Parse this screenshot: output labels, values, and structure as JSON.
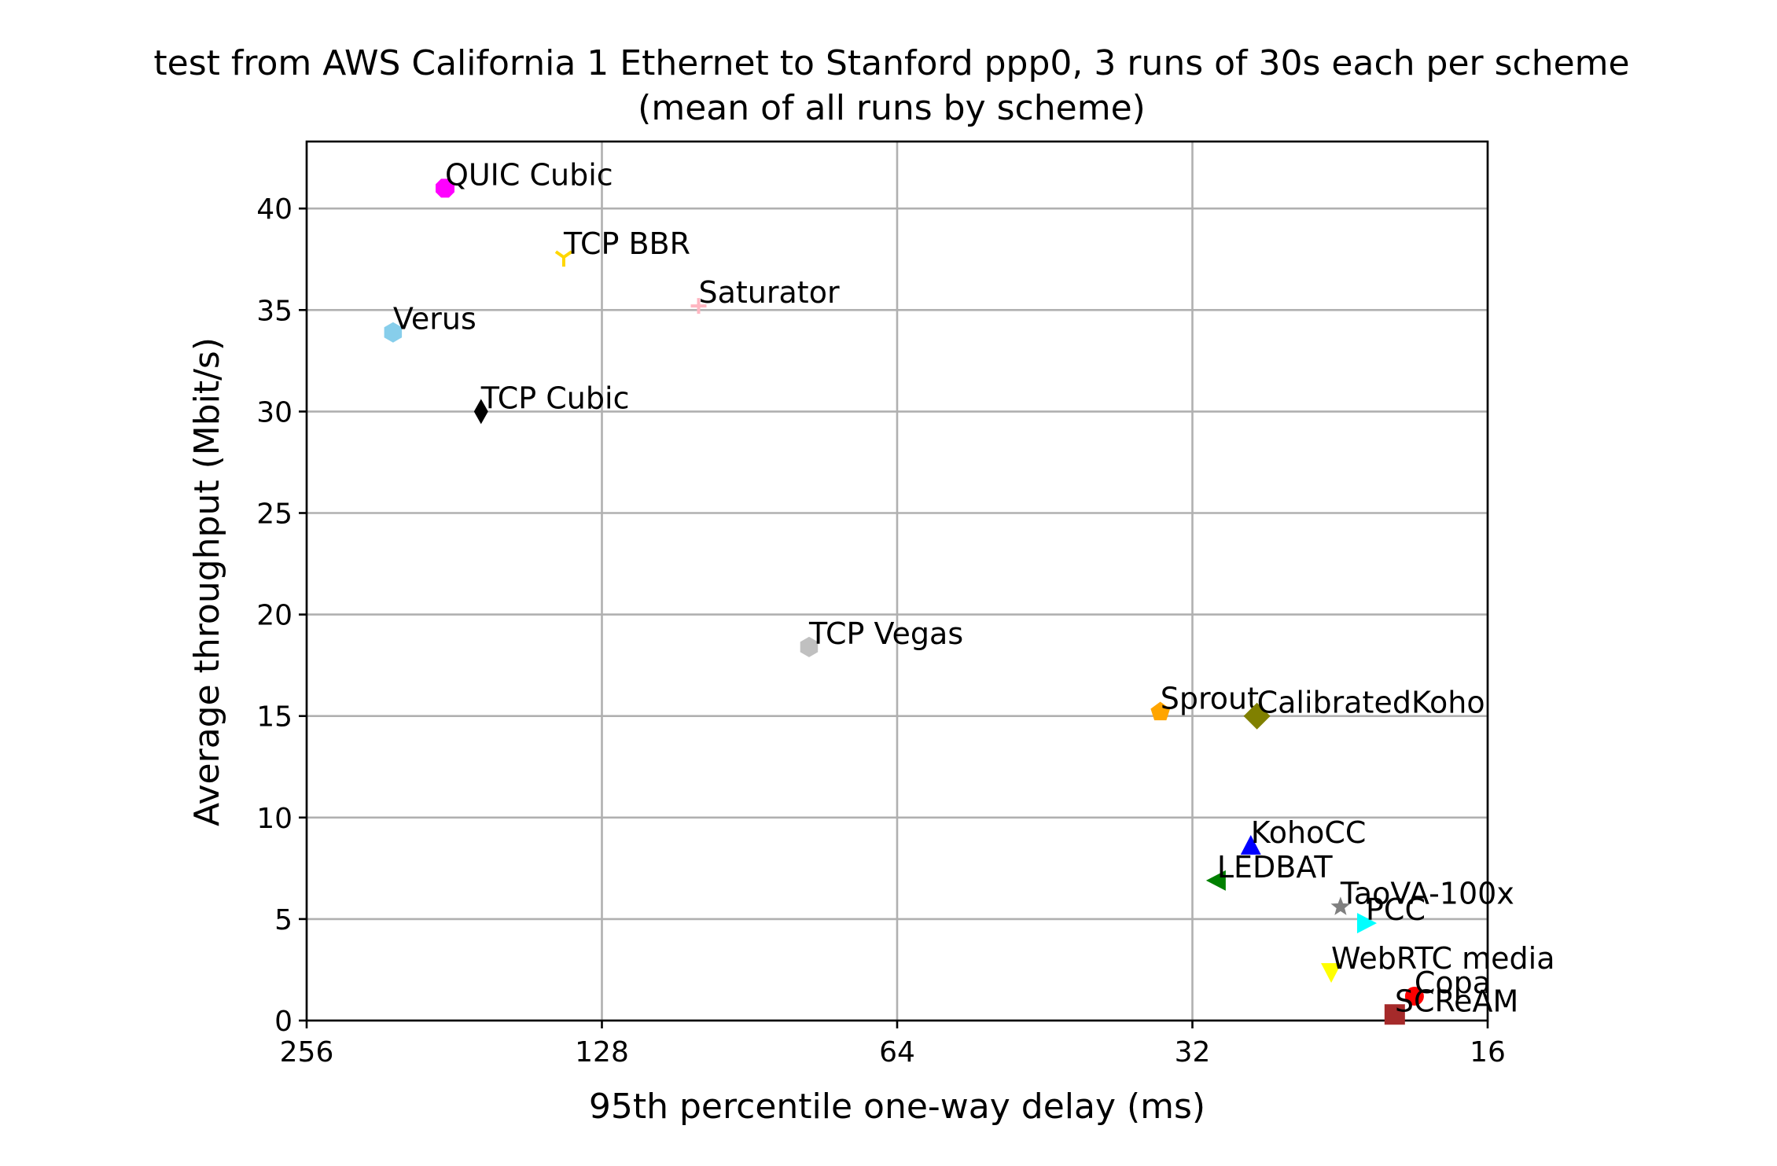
{
  "chart_data": {
    "type": "scatter",
    "title": "test from AWS California 1 Ethernet to Stanford ppp0, 3 runs of 30s each per scheme",
    "subtitle": "(mean of all runs by scheme)",
    "xlabel": "95th percentile one-way delay (ms)",
    "ylabel": "Average throughput (Mbit/s)",
    "x_scale": "log2",
    "x_reversed": true,
    "xlim": [
      256,
      16
    ],
    "ylim": [
      0,
      43.3
    ],
    "xticks": [
      256,
      128,
      64,
      32,
      16
    ],
    "yticks": [
      0,
      5,
      10,
      15,
      20,
      25,
      30,
      35,
      40
    ],
    "grid": true,
    "points": [
      {
        "name": "QUIC Cubic",
        "x": 185,
        "y": 41.0,
        "marker": "octagon",
        "color": "#ff00ff"
      },
      {
        "name": "TCP BBR",
        "x": 140,
        "y": 37.6,
        "marker": "tri-down",
        "color": "#ffd700"
      },
      {
        "name": "Saturator",
        "x": 102,
        "y": 35.2,
        "marker": "plus",
        "color": "#ffb6c1"
      },
      {
        "name": "Verus",
        "x": 209,
        "y": 33.9,
        "marker": "hexagon",
        "color": "#87ceeb"
      },
      {
        "name": "TCP Cubic",
        "x": 170,
        "y": 30.0,
        "marker": "thin-diamond",
        "color": "#000000"
      },
      {
        "name": "TCP Vegas",
        "x": 78.7,
        "y": 18.4,
        "marker": "hexagon",
        "color": "#c0c0c0"
      },
      {
        "name": "Sprout",
        "x": 34.5,
        "y": 15.2,
        "marker": "pentagon",
        "color": "#ffa500"
      },
      {
        "name": "CalibratedKoho",
        "x": 27.5,
        "y": 15.0,
        "marker": "diamond",
        "color": "#808000"
      },
      {
        "name": "KohoCC",
        "x": 27.9,
        "y": 8.6,
        "marker": "triangle-up",
        "color": "#0000ff"
      },
      {
        "name": "LEDBAT",
        "x": 30.2,
        "y": 6.9,
        "marker": "triangle-left",
        "color": "#008000"
      },
      {
        "name": "TaoVA-100x",
        "x": 22.6,
        "y": 5.6,
        "marker": "star",
        "color": "#808080"
      },
      {
        "name": "PCC",
        "x": 21.3,
        "y": 4.8,
        "marker": "triangle-right",
        "color": "#00ffff"
      },
      {
        "name": "WebRTC media",
        "x": 23.1,
        "y": 2.4,
        "marker": "triangle-down",
        "color": "#ffff00"
      },
      {
        "name": "Copa",
        "x": 19.0,
        "y": 1.2,
        "marker": "circle",
        "color": "#ff0000"
      },
      {
        "name": "SCReAM",
        "x": 19.9,
        "y": 0.3,
        "marker": "square",
        "color": "#a52a2a"
      }
    ]
  }
}
